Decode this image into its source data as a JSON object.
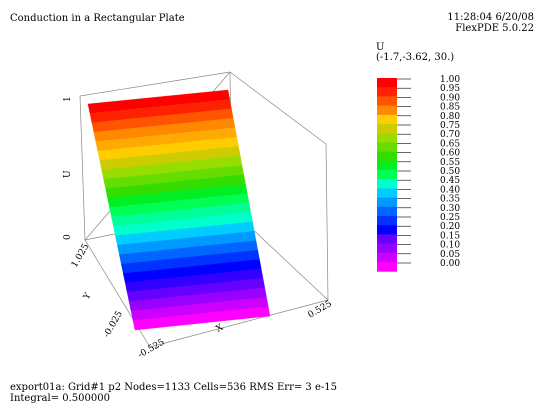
{
  "header": {
    "title": "Conduction in a Rectangular Plate",
    "time": "11:28:04 6/20/08",
    "software": "FlexPDE 5.0.22"
  },
  "legend": {
    "variable": "U",
    "view_point": "(-1.7,-3.62, 30.)"
  },
  "footer": {
    "run_info": "export01a:  Grid#1  p2  Nodes=1133 Cells=536 RMS Err= 3 e-15",
    "integral": "Integral=  0.500000"
  },
  "colors": {
    "palette": [
      "#ff00ff",
      "#cc00ff",
      "#9900ff",
      "#6600ff",
      "#3300ff",
      "#0000ff",
      "#0033ff",
      "#0066ff",
      "#0099ff",
      "#00ccff",
      "#00ffcc",
      "#00ff99",
      "#00ff55",
      "#00ee22",
      "#33dd00",
      "#66dd00",
      "#99dd00",
      "#cccc00",
      "#ffcc00",
      "#ffaa00",
      "#ff8800",
      "#ff5500",
      "#ff2200",
      "#ff0000"
    ]
  },
  "chart_data": {
    "type": "surface",
    "z_label": "U",
    "x_label": "X",
    "y_label": "Y",
    "z_ticks": [
      "0",
      "1"
    ],
    "x_ticks": [
      "-0.525",
      "0.525"
    ],
    "y_ticks": [
      "-0.025",
      "1.025"
    ],
    "color_levels": [
      "0.00",
      "0.05",
      "0.10",
      "0.15",
      "0.20",
      "0.25",
      "0.30",
      "0.35",
      "0.40",
      "0.45",
      "0.50",
      "0.55",
      "0.60",
      "0.65",
      "0.70",
      "0.75",
      "0.80",
      "0.85",
      "0.90",
      "0.95",
      "1.00"
    ],
    "surface": {
      "u_min": 0.0,
      "u_max": 1.0,
      "gradient_axis": "Y"
    }
  }
}
